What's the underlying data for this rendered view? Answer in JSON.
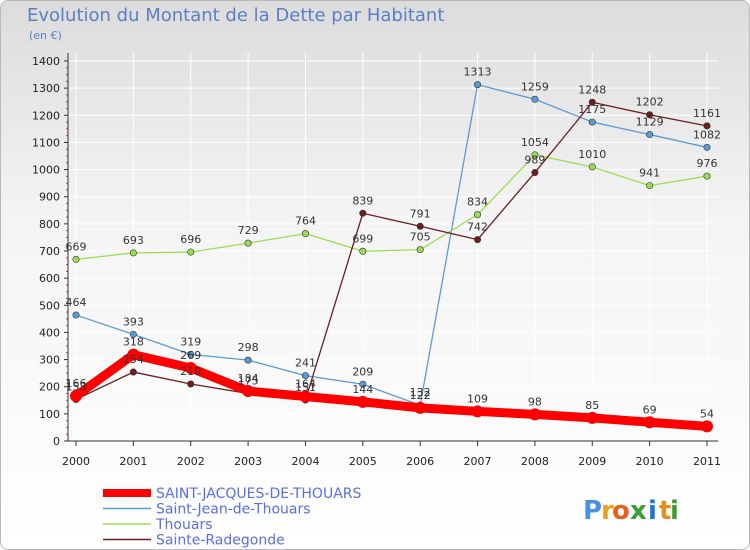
{
  "title": "Evolution du Montant de la Dette par Habitant",
  "subtitle": "(en €)",
  "logo": [
    "P",
    "r",
    "o",
    "x",
    "i",
    "t",
    "i"
  ],
  "colors": {
    "SAINT-JACQUES-DE-THOUARS": "#ff0000",
    "Saint-Jean-de-Thouars": "#5b9bd5",
    "Thouars": "#99dd55",
    "Sainte-Radegonde": "#6b1e1e",
    "grid": "#ffffff",
    "axis": "#333333",
    "logo": [
      "#4a8fe0",
      "#e8a020",
      "#e86020",
      "#3aa030",
      "#2070d0",
      "#e09020",
      "#3aa030"
    ]
  },
  "chart_data": {
    "type": "line",
    "title": "Evolution du Montant de la Dette par Habitant",
    "ylabel": "(en €)",
    "x": [
      2000,
      2001,
      2002,
      2003,
      2004,
      2005,
      2006,
      2007,
      2008,
      2009,
      2010,
      2011
    ],
    "ylim": [
      0,
      1400
    ],
    "yticks": [
      0,
      100,
      200,
      300,
      400,
      500,
      600,
      700,
      800,
      900,
      1000,
      1100,
      1200,
      1300,
      1400
    ],
    "grid": true,
    "legend": "bottom",
    "series": [
      {
        "name": "SAINT-JACQUES-DE-THOUARS",
        "values": [
          166,
          318,
          269,
          184,
          164,
          144,
          122,
          109,
          98,
          85,
          69,
          54
        ]
      },
      {
        "name": "Saint-Jean-de-Thouars",
        "values": [
          464,
          393,
          319,
          298,
          241,
          209,
          132,
          1313,
          1259,
          1175,
          1129,
          1082
        ]
      },
      {
        "name": "Thouars",
        "values": [
          669,
          693,
          696,
          729,
          764,
          699,
          705,
          834,
          1054,
          1010,
          941,
          976
        ]
      },
      {
        "name": "Sainte-Radegonde",
        "values": [
          153,
          254,
          210,
          175,
          151,
          839,
          791,
          742,
          989,
          1248,
          1202,
          1161
        ]
      }
    ]
  }
}
